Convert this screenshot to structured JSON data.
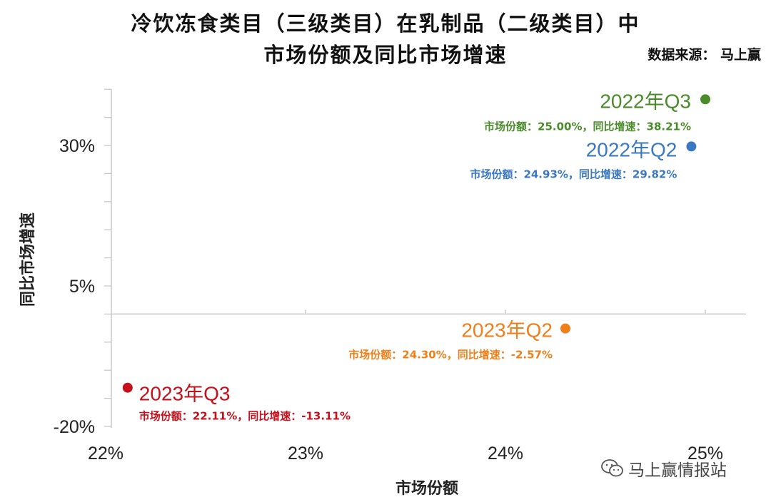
{
  "header": {
    "title_line1": "冷饮冻食类目（三级类目）在乳制品（二级类目）中",
    "title_line2": "市场份额及同比市场增速",
    "source": "数据来源： 马上赢"
  },
  "watermark": {
    "text": "马上赢情报站",
    "icon": "wechat-icon"
  },
  "chart_data": {
    "type": "scatter",
    "xlabel": "市场份额",
    "ylabel": "同比市场增速",
    "xlim": [
      22,
      25.2
    ],
    "ylim": [
      -20,
      40
    ],
    "x_ticks": [
      22,
      23,
      24,
      25
    ],
    "x_tick_labels": [
      "22%",
      "23%",
      "24%",
      "25%"
    ],
    "y_ticks": [
      30,
      5,
      -20
    ],
    "y_tick_labels": [
      "30%",
      "5%",
      "-20%"
    ],
    "grid": false,
    "points": [
      {
        "name": "2022年Q3",
        "x": 25.0,
        "y": 38.21,
        "color": "#4a8c2a",
        "detail": "市场份额：25.00%，同比增速：38.21%"
      },
      {
        "name": "2022年Q2",
        "x": 24.93,
        "y": 29.82,
        "color": "#3a78c2",
        "detail": "市场份额：24.93%，同比增速：29.82%"
      },
      {
        "name": "2023年Q2",
        "x": 24.3,
        "y": -2.57,
        "color": "#f07f1a",
        "detail": "市场份额：24.30%，同比增速：-2.57%"
      },
      {
        "name": "2023年Q3",
        "x": 22.11,
        "y": -13.11,
        "color": "#c8101c",
        "detail": "市场份额：22.11%，同比增速：-13.11%"
      }
    ]
  }
}
